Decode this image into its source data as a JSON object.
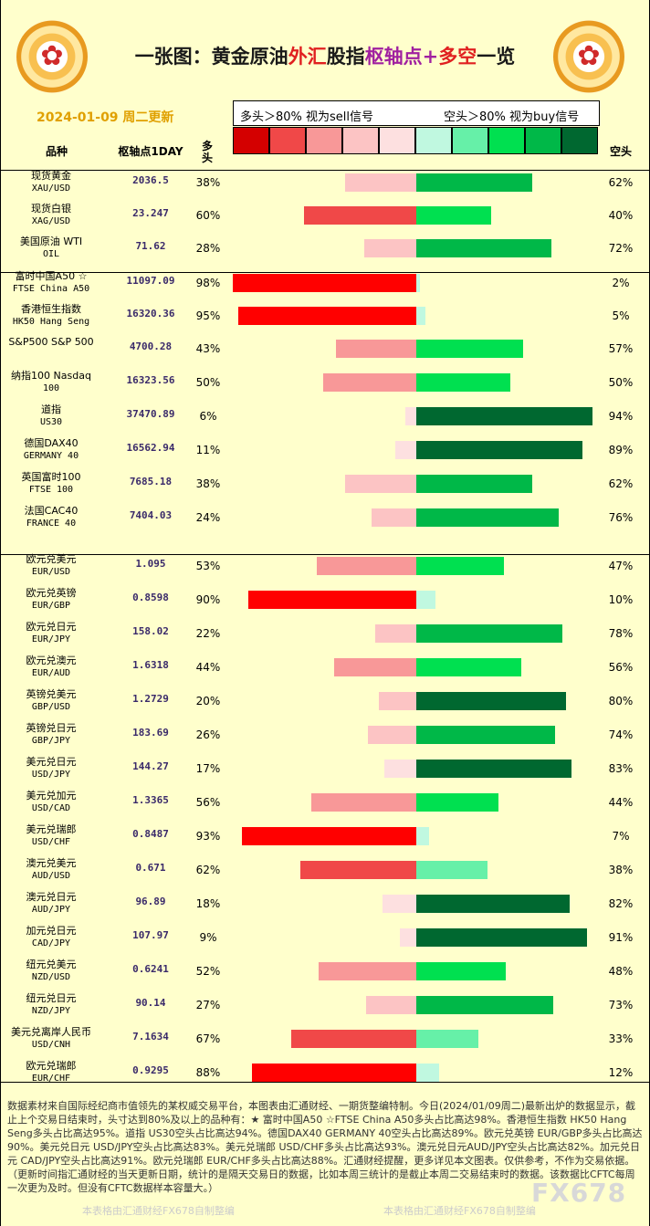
{
  "title": {
    "p1": "一张图：黄金原油",
    "p2": "外汇",
    "p3": "股指",
    "p4": "枢轴点+",
    "p5": "多空",
    "p6": "一览"
  },
  "date_text": "2024-01-09 周二更新",
  "legend": {
    "left": "多头＞80%  视为sell信号",
    "right": "空头＞80%  视为buy信号"
  },
  "legend_colors": {
    "long": [
      "#d40000",
      "#f04848",
      "#f89898",
      "#fcc4c4",
      "#fde0e0"
    ],
    "short": [
      "#c0f8e0",
      "#66f0a8",
      "#00e050",
      "#00b848",
      "#006830"
    ]
  },
  "headers": {
    "name": "品种",
    "pivot": "枢轴点1DAY",
    "long": "多头",
    "short": "空头"
  },
  "chart_data": {
    "type": "bar",
    "xlim": [
      -100,
      100
    ],
    "rows": [
      {
        "cn": "现货黄金",
        "en": "XAU/USD",
        "pivot": "2036.5",
        "long": 38,
        "short": 62
      },
      {
        "cn": "现货白银",
        "en": "XAG/USD",
        "pivot": "23.247",
        "long": 60,
        "short": 40
      },
      {
        "cn": "美国原油     WTI",
        "en": "OIL",
        "pivot": "71.62",
        "long": 28,
        "short": 72
      },
      {
        "cn": "富时中国A50 ☆",
        "en": "FTSE China A50",
        "pivot": "11097.09",
        "long": 98,
        "short": 2
      },
      {
        "cn": "香港恒生指数",
        "en": "HK50 Hang Seng",
        "pivot": "16320.36",
        "long": 95,
        "short": 5
      },
      {
        "cn": "S&P500   S&P 500",
        "en": "",
        "pivot": "4700.28",
        "long": 43,
        "short": 57
      },
      {
        "cn": "纳指100    Nasdaq",
        "en": "100",
        "pivot": "16323.56",
        "long": 50,
        "short": 50
      },
      {
        "cn": "道指",
        "en": "US30",
        "pivot": "37470.89",
        "long": 6,
        "short": 94
      },
      {
        "cn": "德国DAX40",
        "en": "GERMANY 40",
        "pivot": "16562.94",
        "long": 11,
        "short": 89
      },
      {
        "cn": "英国富时100",
        "en": "FTSE 100",
        "pivot": "7685.18",
        "long": 38,
        "short": 62
      },
      {
        "cn": "法国CAC40",
        "en": "FRANCE 40",
        "pivot": "7404.03",
        "long": 24,
        "short": 76
      },
      {
        "cn": "欧元兑美元",
        "en": "EUR/USD",
        "pivot": "1.095",
        "long": 53,
        "short": 47
      },
      {
        "cn": "欧元兑英镑",
        "en": "EUR/GBP",
        "pivot": "0.8598",
        "long": 90,
        "short": 10
      },
      {
        "cn": "欧元兑日元",
        "en": "EUR/JPY",
        "pivot": "158.02",
        "long": 22,
        "short": 78
      },
      {
        "cn": "欧元兑澳元",
        "en": "EUR/AUD",
        "pivot": "1.6318",
        "long": 44,
        "short": 56
      },
      {
        "cn": "英镑兑美元",
        "en": "GBP/USD",
        "pivot": "1.2729",
        "long": 20,
        "short": 80
      },
      {
        "cn": "英镑兑日元",
        "en": "GBP/JPY",
        "pivot": "183.69",
        "long": 26,
        "short": 74
      },
      {
        "cn": "美元兑日元",
        "en": "USD/JPY",
        "pivot": "144.27",
        "long": 17,
        "short": 83
      },
      {
        "cn": "美元兑加元",
        "en": "USD/CAD",
        "pivot": "1.3365",
        "long": 56,
        "short": 44
      },
      {
        "cn": "美元兑瑞郎",
        "en": "USD/CHF",
        "pivot": "0.8487",
        "long": 93,
        "short": 7
      },
      {
        "cn": "澳元兑美元",
        "en": "AUD/USD",
        "pivot": "0.671",
        "long": 62,
        "short": 38
      },
      {
        "cn": "澳元兑日元",
        "en": "AUD/JPY",
        "pivot": "96.89",
        "long": 18,
        "short": 82
      },
      {
        "cn": "加元兑日元",
        "en": "CAD/JPY",
        "pivot": "107.97",
        "long": 9,
        "short": 91
      },
      {
        "cn": "纽元兑美元",
        "en": "NZD/USD",
        "pivot": "0.6241",
        "long": 52,
        "short": 48
      },
      {
        "cn": "纽元兑日元",
        "en": "NZD/JPY",
        "pivot": "90.14",
        "long": 27,
        "short": 73
      },
      {
        "cn": "美元兑离岸人民币",
        "en": "USD/CNH",
        "pivot": "7.1634",
        "long": 67,
        "short": 33
      },
      {
        "cn": "欧元兑瑞郎",
        "en": "EUR/CHF",
        "pivot": "0.9295",
        "long": 88,
        "short": 12
      }
    ]
  },
  "note": "数据素材来自国际经纪商市值领先的某权威交易平台，本图表由汇通财经、一期货整编特制。今日(2024/01/09周二)最新出炉的数据显示，截止上个交易日结束时，头寸达到80%及以上的品种有：★ 富时中国A50 ☆FTSE China A50多头占比高达98%。香港恒生指数 HK50 Hang Seng多头占比高达95%。道指      US30空头占比高达94%。德国DAX40      GERMANY 40空头占比高达89%。欧元兑英镑 EUR/GBP多头占比高达90%。美元兑日元 USD/JPY空头占比高达83%。美元兑瑞郎 USD/CHF多头占比高达93%。澳元兑日元AUD/JPY空头占比高达82%。加元兑日元 CAD/JPY空头占比高达91%。欧元兑瑞郎 EUR/CHF多头占比高达88%。汇通财经提醒，更多详见本文图表。仅供参考，不作为交易依据。（更新时间指汇通财经的当天更新日期，统计的是隔天交易日的数据，比如本周三统计的是截止本周二交易结束时的数据。该数据比CFTC每周一次更为及时。但没有CFTC数据样本容量大。）",
  "footer": {
    "left": "本表格由汇通财经FX678自制整编",
    "right": "本表格由汇通财经FX678自制整编"
  },
  "watermark": "FX678"
}
